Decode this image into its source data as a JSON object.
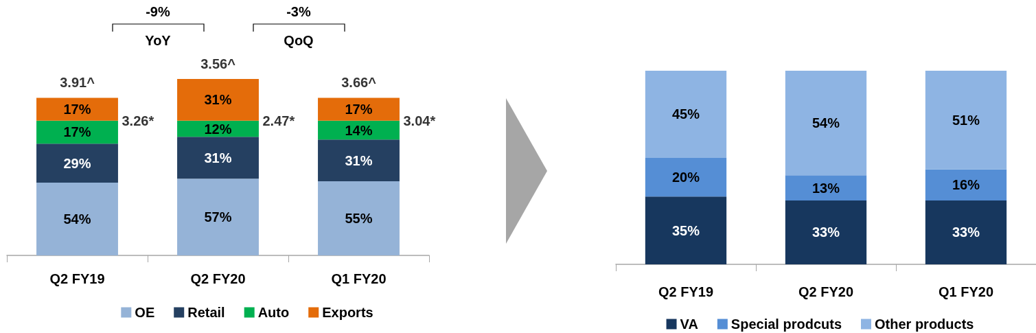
{
  "chart_data": [
    {
      "type": "bar",
      "stacked": true,
      "tick_labels": "x",
      "legend": "bottom",
      "categories": [
        "Q2 FY19",
        "Q2 FY20",
        "Q1 FY20"
      ],
      "series": [
        {
          "name": "OE",
          "color": "#95b3d7",
          "values": [
            54,
            57,
            55
          ],
          "value_labels": [
            "54%",
            "57%",
            "55%"
          ]
        },
        {
          "name": "Retail",
          "color": "#254061",
          "values": [
            29,
            31,
            31
          ],
          "value_labels": [
            "29%",
            "31%",
            "31%"
          ]
        },
        {
          "name": "Auto",
          "color": "#00b050",
          "values": [
            17,
            12,
            14
          ],
          "value_labels": [
            "17%",
            "12%",
            "14%"
          ]
        },
        {
          "name": "Exports",
          "color": "#e46c0a",
          "values": [
            17,
            31,
            17
          ],
          "value_labels": [
            "17%",
            "31%",
            "17%"
          ]
        }
      ],
      "annotations": [
        "3.91^",
        "3.56^",
        "3.66^",
        "3.26*",
        "2.47*",
        "3.04*",
        "-9%",
        "YoY",
        "-3%",
        "QoQ"
      ]
    },
    {
      "type": "bar",
      "stacked": true,
      "tick_labels": "x",
      "legend": "bottom",
      "categories": [
        "Q2 FY19",
        "Q2 FY20",
        "Q1 FY20"
      ],
      "series": [
        {
          "name": "VA",
          "color": "#17375e",
          "values": [
            35,
            33,
            33
          ],
          "value_labels": [
            "35%",
            "33%",
            "33%"
          ]
        },
        {
          "name": "Special prodcuts",
          "color": "#558ed5",
          "values": [
            20,
            13,
            16
          ],
          "value_labels": [
            "20%",
            "13%",
            "16%"
          ]
        },
        {
          "name": "Other products",
          "color": "#8eb4e3",
          "values": [
            45,
            54,
            51
          ],
          "value_labels": [
            "45%",
            "54%",
            "51%"
          ]
        }
      ]
    }
  ]
}
